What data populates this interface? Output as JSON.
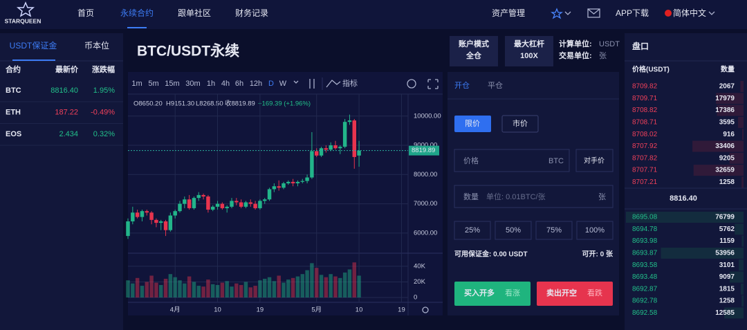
{
  "nav": {
    "logo": "STARQUEEN",
    "items": [
      "首页",
      "永续合约",
      "跟单社区",
      "财务记录"
    ],
    "active": 1,
    "right": [
      "资产管理",
      "APP下载",
      "简体中文"
    ]
  },
  "markets": {
    "tabs": [
      "USDT保证金",
      "币本位"
    ],
    "headers": [
      "合约",
      "最新价",
      "涨跌幅"
    ],
    "rows": [
      [
        "BTC",
        "8816.40",
        "1.95%"
      ],
      [
        "ETH",
        "187.22",
        "-0.49%"
      ],
      [
        "EOS",
        "2.434",
        "0.32%"
      ]
    ]
  },
  "symbol": {
    "title": "BTC/USDT永续",
    "boxes": [
      [
        "账户模式",
        "全仓"
      ],
      [
        "最大杠杆",
        "100X"
      ]
    ],
    "units": [
      [
        "计算单位:",
        "USDT"
      ],
      [
        "交易单位:",
        "张"
      ]
    ]
  },
  "toolbar": {
    "intervals": [
      "1m",
      "5m",
      "15m",
      "30m",
      "1h",
      "4h",
      "6h",
      "12h",
      "D",
      "W"
    ],
    "active": 8,
    "indicator": "指标"
  },
  "chart_data": {
    "type": "candlestick",
    "ohlc_header": [
      "O8650.20",
      "H9151.30",
      "L8268.50",
      "收8819.89",
      "+169.39 (+1.96%)"
    ],
    "candles": [
      [
        5900,
        6500,
        5800,
        6400
      ],
      [
        6400,
        6900,
        6300,
        6700
      ],
      [
        6700,
        6800,
        6500,
        6550
      ],
      [
        6550,
        6800,
        6400,
        6750
      ],
      [
        6750,
        6800,
        6600,
        6700
      ],
      [
        6700,
        6750,
        6300,
        6450
      ],
      [
        6450,
        6500,
        6200,
        6350
      ],
      [
        6350,
        6450,
        6100,
        6400
      ],
      [
        6400,
        6450,
        5900,
        6100
      ],
      [
        6100,
        6700,
        6050,
        6600
      ],
      [
        6600,
        6800,
        6500,
        6750
      ],
      [
        6750,
        7100,
        6700,
        7000
      ],
      [
        7000,
        7250,
        6850,
        7150
      ],
      [
        7150,
        7300,
        6800,
        6850
      ],
      [
        6850,
        7250,
        6800,
        7200
      ],
      [
        7200,
        7400,
        7100,
        7300
      ],
      [
        7300,
        7350,
        7150,
        7250
      ],
      [
        7250,
        7300,
        6700,
        6800
      ],
      [
        6800,
        6950,
        6750,
        6900
      ],
      [
        6900,
        7100,
        6800,
        7000
      ],
      [
        7000,
        7050,
        6800,
        6850
      ],
      [
        6850,
        6950,
        6700,
        6900
      ],
      [
        6900,
        7200,
        6850,
        7100
      ],
      [
        7100,
        7200,
        6950,
        7050
      ],
      [
        7050,
        7150,
        6850,
        6900
      ],
      [
        6900,
        7100,
        6850,
        7050
      ],
      [
        7050,
        7150,
        6900,
        7000
      ],
      [
        7000,
        7100,
        6800,
        6850
      ],
      [
        6850,
        7150,
        6800,
        7100
      ],
      [
        7100,
        7200,
        7000,
        7150
      ],
      [
        7150,
        7550,
        7100,
        7500
      ],
      [
        7500,
        7700,
        7400,
        7600
      ],
      [
        7600,
        7800,
        7450,
        7550
      ],
      [
        7550,
        7750,
        7500,
        7700
      ],
      [
        7700,
        7800,
        7650,
        7750
      ],
      [
        7750,
        7850,
        7600,
        7700
      ],
      [
        7700,
        7800,
        7600,
        7750
      ],
      [
        7750,
        7850,
        7700,
        7780
      ],
      [
        7780,
        8000,
        7700,
        7900
      ],
      [
        7900,
        9450,
        7850,
        8800
      ],
      [
        8800,
        8900,
        8600,
        8650
      ],
      [
        8650,
        8950,
        8600,
        8900
      ],
      [
        8900,
        9000,
        8750,
        8850
      ],
      [
        8850,
        9100,
        8800,
        9000
      ],
      [
        9000,
        9150,
        8850,
        8900
      ],
      [
        8900,
        9000,
        8700,
        8950
      ],
      [
        8950,
        9900,
        8900,
        9800
      ],
      [
        9800,
        10050,
        9700,
        9850
      ],
      [
        9850,
        9900,
        8200,
        8600
      ],
      [
        8650.2,
        9151.3,
        8268.5,
        8819.89
      ]
    ],
    "xlim": [
      0,
      59.4
    ],
    "xticks": [
      {
        "value": 10,
        "label": "4月"
      },
      {
        "value": 19,
        "label": "10"
      },
      {
        "value": 28,
        "label": "19"
      },
      {
        "value": 40,
        "label": "5月"
      },
      {
        "value": 49,
        "label": "10"
      },
      {
        "value": 58,
        "label": "19"
      }
    ],
    "ylim": [
      5335,
      10656
    ],
    "yticks": [
      {
        "value": 6000,
        "label": "6000.00"
      },
      {
        "value": 7000,
        "label": "7000.00"
      },
      {
        "value": 8000,
        "label": "8000.00"
      },
      {
        "value": 9000,
        "label": "9000.00"
      },
      {
        "value": 10000,
        "label": "10000.00"
      }
    ],
    "last_price": {
      "value": 8819.89,
      "label": "8819.89"
    },
    "volume": [
      22000,
      18000,
      25000,
      15000,
      20000,
      28000,
      19000,
      16000,
      24000,
      30000,
      26000,
      22000,
      18000,
      27000,
      20000,
      15000,
      14000,
      23000,
      17000,
      16000,
      19000,
      21000,
      14000,
      18000,
      16000,
      20000,
      13000,
      15000,
      22000,
      24000,
      26000,
      21000,
      28000,
      19000,
      23000,
      25000,
      27000,
      30000,
      35000,
      44000,
      38000,
      29000,
      26000,
      30000,
      27000,
      25000,
      32000,
      36000,
      45000,
      28000
    ],
    "vlim": [
      0,
      55000
    ],
    "vticks": [
      0,
      {
        "value": 20000,
        "label": "20K"
      },
      {
        "value": 40000,
        "label": "40K"
      }
    ],
    "up_color": "#22b58a",
    "down_color": "#e8344e",
    "grid": true
  },
  "order_form": {
    "tabs": [
      "开仓",
      "平仓"
    ],
    "types": [
      "限价",
      "市价"
    ],
    "price_label": "价格",
    "price_unit": "BTC",
    "counter": "对手价",
    "qty_label": "数量",
    "qty_hint": "单位: 0.01BTC/张",
    "qty_unit": "张",
    "percents": [
      "25%",
      "50%",
      "75%",
      "100%"
    ],
    "available": "可用保证金: 0.00 USDT",
    "openable": "可开: 0 张",
    "buy": [
      "买入开多",
      "看涨"
    ],
    "sell": [
      "卖出开空",
      "看跌"
    ]
  },
  "order_book": {
    "title": "盘口",
    "headers": [
      "价格(USDT)",
      "数量"
    ],
    "asks": [
      [
        "8709.82",
        2067
      ],
      [
        "8709.71",
        17979
      ],
      [
        "8708.82",
        17386
      ],
      [
        "8708.71",
        3595
      ],
      [
        "8708.02",
        916
      ],
      [
        "8707.92",
        33406
      ],
      [
        "8707.82",
        9205
      ],
      [
        "8707.71",
        32659
      ],
      [
        "8707.21",
        1258
      ]
    ],
    "mid": "8816.40",
    "bids": [
      [
        "8695.08",
        76799
      ],
      [
        "8694.78",
        5762
      ],
      [
        "8693.98",
        1159
      ],
      [
        "8693.87",
        53956
      ],
      [
        "8693.58",
        3101
      ],
      [
        "8693.48",
        9097
      ],
      [
        "8692.87",
        1815
      ],
      [
        "8692.78",
        1258
      ],
      [
        "8692.58",
        12585
      ]
    ]
  }
}
